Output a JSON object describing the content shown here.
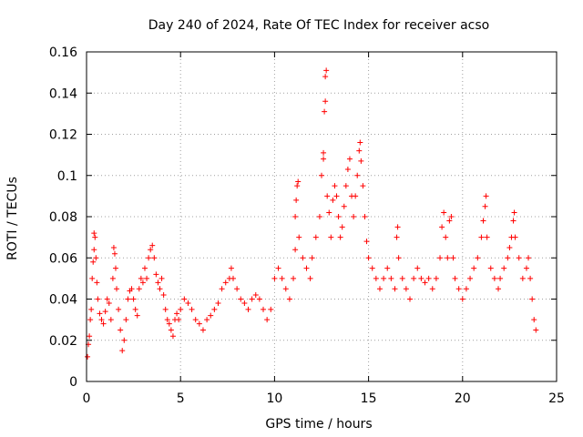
{
  "chart_data": {
    "type": "scatter",
    "title": "Day 240 of 2024, Rate Of TEC Index for receiver acso",
    "xlabel": "GPS time / hours",
    "ylabel": "ROTI / TECUs",
    "xlim": [
      0,
      25
    ],
    "ylim": [
      0,
      0.16
    ],
    "x_ticks": [
      0,
      5,
      10,
      15,
      20,
      25
    ],
    "x_tick_labels": [
      "0",
      "5",
      "10",
      "15",
      "20",
      "25"
    ],
    "y_ticks": [
      0,
      0.02,
      0.04,
      0.06,
      0.08,
      0.1,
      0.12,
      0.14,
      0.16
    ],
    "y_tick_labels": [
      "0",
      "0.02",
      "0.04",
      "0.06",
      "0.08",
      "0.1",
      "0.12",
      "0.14",
      "0.16"
    ],
    "grid": true,
    "marker": "plus",
    "color": "#ff0000",
    "series": [
      {
        "points": [
          [
            0.05,
            0.012
          ],
          [
            0.1,
            0.018
          ],
          [
            0.15,
            0.022
          ],
          [
            0.2,
            0.03
          ],
          [
            0.25,
            0.035
          ],
          [
            0.3,
            0.05
          ],
          [
            0.35,
            0.058
          ],
          [
            0.4,
            0.064
          ],
          [
            0.4,
            0.072
          ],
          [
            0.45,
            0.07
          ],
          [
            0.5,
            0.06
          ],
          [
            0.55,
            0.048
          ],
          [
            0.6,
            0.04
          ],
          [
            0.7,
            0.033
          ],
          [
            0.8,
            0.03
          ],
          [
            0.9,
            0.028
          ],
          [
            1.0,
            0.034
          ],
          [
            1.1,
            0.04
          ],
          [
            1.2,
            0.038
          ],
          [
            1.3,
            0.03
          ],
          [
            1.4,
            0.05
          ],
          [
            1.45,
            0.065
          ],
          [
            1.5,
            0.062
          ],
          [
            1.55,
            0.055
          ],
          [
            1.6,
            0.045
          ],
          [
            1.7,
            0.035
          ],
          [
            1.8,
            0.025
          ],
          [
            1.9,
            0.015
          ],
          [
            2.0,
            0.02
          ],
          [
            2.1,
            0.03
          ],
          [
            2.2,
            0.04
          ],
          [
            2.3,
            0.044
          ],
          [
            2.4,
            0.045
          ],
          [
            2.5,
            0.04
          ],
          [
            2.6,
            0.035
          ],
          [
            2.7,
            0.032
          ],
          [
            2.8,
            0.045
          ],
          [
            2.9,
            0.05
          ],
          [
            3.0,
            0.048
          ],
          [
            3.1,
            0.055
          ],
          [
            3.2,
            0.05
          ],
          [
            3.3,
            0.06
          ],
          [
            3.4,
            0.064
          ],
          [
            3.5,
            0.066
          ],
          [
            3.6,
            0.06
          ],
          [
            3.7,
            0.052
          ],
          [
            3.8,
            0.048
          ],
          [
            3.9,
            0.045
          ],
          [
            4.0,
            0.05
          ],
          [
            4.1,
            0.042
          ],
          [
            4.2,
            0.035
          ],
          [
            4.3,
            0.03
          ],
          [
            4.4,
            0.028
          ],
          [
            4.5,
            0.025
          ],
          [
            4.6,
            0.022
          ],
          [
            4.7,
            0.03
          ],
          [
            4.8,
            0.033
          ],
          [
            4.9,
            0.03
          ],
          [
            5.0,
            0.035
          ],
          [
            5.2,
            0.04
          ],
          [
            5.4,
            0.038
          ],
          [
            5.6,
            0.035
          ],
          [
            5.8,
            0.03
          ],
          [
            6.0,
            0.028
          ],
          [
            6.2,
            0.025
          ],
          [
            6.4,
            0.03
          ],
          [
            6.6,
            0.032
          ],
          [
            6.8,
            0.035
          ],
          [
            7.0,
            0.038
          ],
          [
            7.2,
            0.045
          ],
          [
            7.4,
            0.048
          ],
          [
            7.6,
            0.05
          ],
          [
            7.7,
            0.055
          ],
          [
            7.8,
            0.05
          ],
          [
            8.0,
            0.045
          ],
          [
            8.2,
            0.04
          ],
          [
            8.4,
            0.038
          ],
          [
            8.6,
            0.035
          ],
          [
            8.8,
            0.04
          ],
          [
            9.0,
            0.042
          ],
          [
            9.2,
            0.04
          ],
          [
            9.4,
            0.035
          ],
          [
            9.6,
            0.03
          ],
          [
            9.8,
            0.035
          ],
          [
            10.0,
            0.05
          ],
          [
            10.2,
            0.055
          ],
          [
            10.4,
            0.05
          ],
          [
            10.6,
            0.045
          ],
          [
            10.8,
            0.04
          ],
          [
            11.0,
            0.05
          ],
          [
            11.1,
            0.064
          ],
          [
            11.1,
            0.08
          ],
          [
            11.15,
            0.088
          ],
          [
            11.2,
            0.095
          ],
          [
            11.25,
            0.097
          ],
          [
            11.3,
            0.07
          ],
          [
            11.5,
            0.06
          ],
          [
            11.7,
            0.055
          ],
          [
            11.9,
            0.05
          ],
          [
            12.0,
            0.06
          ],
          [
            12.2,
            0.07
          ],
          [
            12.4,
            0.08
          ],
          [
            12.5,
            0.1
          ],
          [
            12.6,
            0.108
          ],
          [
            12.6,
            0.111
          ],
          [
            12.65,
            0.131
          ],
          [
            12.7,
            0.136
          ],
          [
            12.7,
            0.148
          ],
          [
            12.75,
            0.151
          ],
          [
            12.8,
            0.09
          ],
          [
            12.9,
            0.082
          ],
          [
            13.0,
            0.07
          ],
          [
            13.1,
            0.088
          ],
          [
            13.2,
            0.095
          ],
          [
            13.3,
            0.09
          ],
          [
            13.4,
            0.08
          ],
          [
            13.5,
            0.07
          ],
          [
            13.6,
            0.075
          ],
          [
            13.7,
            0.085
          ],
          [
            13.8,
            0.095
          ],
          [
            13.9,
            0.103
          ],
          [
            14.0,
            0.108
          ],
          [
            14.1,
            0.09
          ],
          [
            14.2,
            0.08
          ],
          [
            14.3,
            0.09
          ],
          [
            14.4,
            0.1
          ],
          [
            14.5,
            0.112
          ],
          [
            14.55,
            0.116
          ],
          [
            14.6,
            0.107
          ],
          [
            14.7,
            0.095
          ],
          [
            14.8,
            0.08
          ],
          [
            14.9,
            0.068
          ],
          [
            15.0,
            0.06
          ],
          [
            15.2,
            0.055
          ],
          [
            15.4,
            0.05
          ],
          [
            15.6,
            0.045
          ],
          [
            15.8,
            0.05
          ],
          [
            16.0,
            0.055
          ],
          [
            16.2,
            0.05
          ],
          [
            16.4,
            0.045
          ],
          [
            16.5,
            0.07
          ],
          [
            16.55,
            0.075
          ],
          [
            16.6,
            0.06
          ],
          [
            16.8,
            0.05
          ],
          [
            17.0,
            0.045
          ],
          [
            17.2,
            0.04
          ],
          [
            17.4,
            0.05
          ],
          [
            17.6,
            0.055
          ],
          [
            17.8,
            0.05
          ],
          [
            18.0,
            0.048
          ],
          [
            18.2,
            0.05
          ],
          [
            18.4,
            0.045
          ],
          [
            18.6,
            0.05
          ],
          [
            18.8,
            0.06
          ],
          [
            18.9,
            0.075
          ],
          [
            19.0,
            0.082
          ],
          [
            19.1,
            0.07
          ],
          [
            19.2,
            0.06
          ],
          [
            19.3,
            0.078
          ],
          [
            19.4,
            0.08
          ],
          [
            19.5,
            0.06
          ],
          [
            19.6,
            0.05
          ],
          [
            19.8,
            0.045
          ],
          [
            20.0,
            0.04
          ],
          [
            20.2,
            0.045
          ],
          [
            20.4,
            0.05
          ],
          [
            20.6,
            0.055
          ],
          [
            20.8,
            0.06
          ],
          [
            21.0,
            0.07
          ],
          [
            21.1,
            0.078
          ],
          [
            21.2,
            0.085
          ],
          [
            21.25,
            0.09
          ],
          [
            21.3,
            0.07
          ],
          [
            21.5,
            0.055
          ],
          [
            21.7,
            0.05
          ],
          [
            21.9,
            0.045
          ],
          [
            22.0,
            0.05
          ],
          [
            22.2,
            0.055
          ],
          [
            22.4,
            0.06
          ],
          [
            22.5,
            0.065
          ],
          [
            22.6,
            0.07
          ],
          [
            22.7,
            0.078
          ],
          [
            22.75,
            0.082
          ],
          [
            22.8,
            0.07
          ],
          [
            23.0,
            0.06
          ],
          [
            23.2,
            0.05
          ],
          [
            23.4,
            0.055
          ],
          [
            23.5,
            0.06
          ],
          [
            23.6,
            0.05
          ],
          [
            23.7,
            0.04
          ],
          [
            23.8,
            0.03
          ],
          [
            23.9,
            0.025
          ]
        ]
      }
    ]
  }
}
